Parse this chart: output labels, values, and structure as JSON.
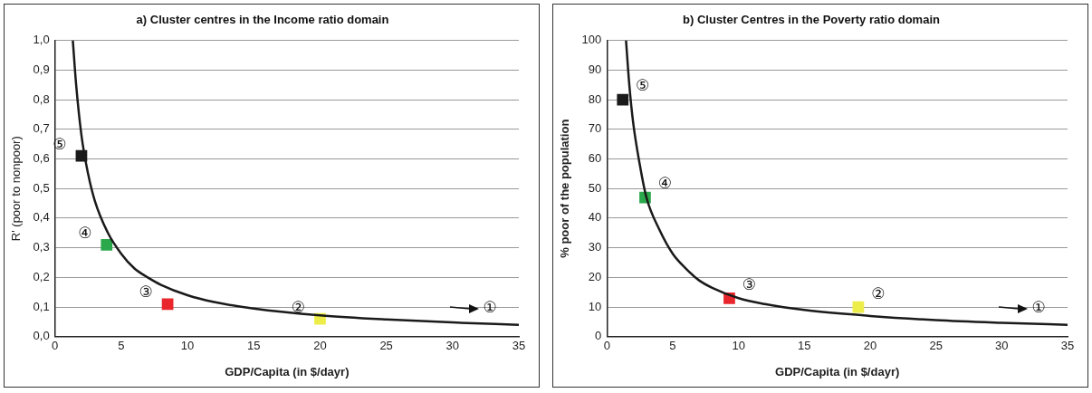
{
  "chart_data": [
    {
      "type": "line",
      "title": "a) Cluster centres in the Income ratio domain",
      "xlabel": "GDP/Capita (in $/dayr)",
      "ylabel": "R' (poor to nonpoor)",
      "xlim": [
        0,
        35
      ],
      "xticks": [
        0,
        5,
        10,
        15,
        20,
        25,
        30,
        35
      ],
      "ylim": [
        0,
        1
      ],
      "yticks": [
        {
          "value": 0,
          "label": "0,0"
        },
        {
          "value": 0.1,
          "label": "0,1"
        },
        {
          "value": 0.2,
          "label": "0,2"
        },
        {
          "value": 0.3,
          "label": "0,3"
        },
        {
          "value": 0.4,
          "label": "0,4"
        },
        {
          "value": 0.5,
          "label": "0,5"
        },
        {
          "value": 0.6,
          "label": "0,6"
        },
        {
          "value": 0.7,
          "label": "0,7"
        },
        {
          "value": 0.8,
          "label": "0,8"
        },
        {
          "value": 0.9,
          "label": "0,9"
        },
        {
          "value": 1,
          "label": "1,0"
        }
      ],
      "grid": "y",
      "legend": false,
      "series": [
        {
          "type": "line",
          "color": "#1a1a1a",
          "marker": "none",
          "x": [
            1.35,
            1.6,
            2,
            2.5,
            3,
            4,
            5,
            6,
            7,
            8,
            10,
            12,
            15,
            20,
            25,
            30,
            35
          ],
          "values": [
            1.0,
            0.85,
            0.68,
            0.55,
            0.46,
            0.35,
            0.28,
            0.23,
            0.2,
            0.175,
            0.14,
            0.117,
            0.095,
            0.072,
            0.058,
            0.048,
            0.04
          ]
        },
        {
          "type": "scatter",
          "marker": "square",
          "x": [
            2.0,
            3.9,
            8.5,
            20
          ],
          "values": [
            0.61,
            0.31,
            0.11,
            0.06
          ],
          "colors": [
            "#1a1a1a",
            "#2ca84c",
            "#e8262b",
            "#eded4a"
          ]
        }
      ],
      "annotations": [
        {
          "text": "⑤",
          "x": 2.0,
          "y": 0.61
        },
        {
          "text": "④",
          "x": 3.9,
          "y": 0.31
        },
        {
          "text": "③",
          "x": 8.5,
          "y": 0.11
        },
        {
          "text": "②",
          "x": 20,
          "y": 0.06
        },
        {
          "text": "①",
          "x": 35,
          "y": 0.04
        }
      ]
    },
    {
      "type": "line",
      "title": "b) Cluster Centres in the Poverty ratio domain",
      "xlabel": "GDP/Capita (in $/dayr)",
      "ylabel": "% poor of the population",
      "xlim": [
        0,
        35
      ],
      "xticks": [
        0,
        5,
        10,
        15,
        20,
        25,
        30,
        35
      ],
      "ylim": [
        0,
        100
      ],
      "yticks": [
        0,
        10,
        20,
        30,
        40,
        50,
        60,
        70,
        80,
        90,
        100
      ],
      "grid": "y",
      "legend": false,
      "series": [
        {
          "type": "line",
          "color": "#1a1a1a",
          "marker": "none",
          "x": [
            1.45,
            1.7,
            2,
            2.5,
            3,
            4,
            5,
            6,
            7,
            8,
            10,
            12,
            15,
            20,
            25,
            30,
            35
          ],
          "values": [
            100,
            85,
            72,
            58,
            47,
            36,
            28,
            23,
            19,
            16.5,
            13,
            11,
            9,
            7,
            5.6,
            4.7,
            4
          ]
        },
        {
          "type": "scatter",
          "marker": "square",
          "x": [
            1.2,
            2.9,
            9.3,
            19.1
          ],
          "values": [
            80,
            47,
            13,
            10
          ],
          "colors": [
            "#1a1a1a",
            "#2ca84c",
            "#e8262b",
            "#eded4a"
          ]
        }
      ],
      "annotations": [
        {
          "text": "⑤",
          "x": 1.2,
          "y": 80
        },
        {
          "text": "④",
          "x": 2.9,
          "y": 47
        },
        {
          "text": "③",
          "x": 9.3,
          "y": 13
        },
        {
          "text": "②",
          "x": 19.1,
          "y": 10
        },
        {
          "text": "①",
          "x": 35,
          "y": 4
        }
      ]
    }
  ]
}
